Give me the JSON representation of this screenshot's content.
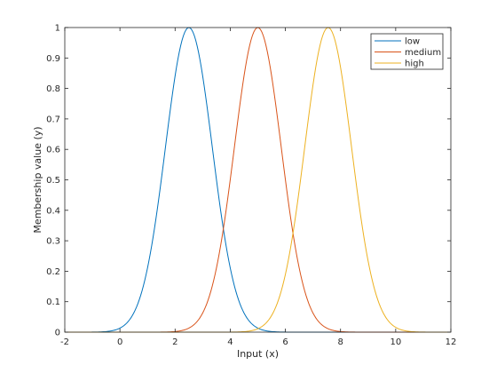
{
  "chart_data": {
    "type": "line",
    "title": "",
    "xlabel": "Input (x)",
    "ylabel": "Membership value (y)",
    "xlim": [
      -2,
      12
    ],
    "ylim": [
      0,
      1
    ],
    "xticks": [
      "-2",
      "0",
      "2",
      "4",
      "6",
      "8",
      "10",
      "12"
    ],
    "yticks": [
      "0",
      "0.1",
      "0.2",
      "0.3",
      "0.4",
      "0.5",
      "0.6",
      "0.7",
      "0.8",
      "0.9",
      "1"
    ],
    "grid": false,
    "legend_position": "top-right",
    "series": [
      {
        "name": "low",
        "color": "#0072BD",
        "curve": "gaussian",
        "mean": 2.5,
        "sigma": 0.85,
        "x": [
          -0.5,
          0,
          0.5,
          1,
          1.5,
          2,
          2.5,
          3,
          3.5,
          4,
          4.5,
          5,
          5.5
        ],
        "values": [
          0.002,
          0.013,
          0.063,
          0.211,
          0.501,
          0.841,
          1,
          0.841,
          0.501,
          0.211,
          0.063,
          0.013,
          0.002
        ]
      },
      {
        "name": "medium",
        "color": "#D95319",
        "curve": "gaussian",
        "mean": 5,
        "sigma": 0.85,
        "x": [
          2,
          2.5,
          3,
          3.5,
          4,
          4.5,
          5,
          5.5,
          6,
          6.5,
          7,
          7.5,
          8
        ],
        "values": [
          0.002,
          0.013,
          0.063,
          0.211,
          0.501,
          0.841,
          1,
          0.841,
          0.501,
          0.211,
          0.063,
          0.013,
          0.002
        ]
      },
      {
        "name": "high",
        "color": "#EDB120",
        "curve": "gaussian",
        "mean": 7.55,
        "sigma": 0.85,
        "x": [
          4.5,
          5,
          5.5,
          6,
          6.5,
          7,
          7.5,
          8,
          8.5,
          9,
          9.5,
          10,
          10.5
        ],
        "values": [
          0.002,
          0.011,
          0.055,
          0.19,
          0.47,
          0.815,
          0.998,
          0.869,
          0.535,
          0.232,
          0.071,
          0.016,
          0.002
        ]
      }
    ]
  }
}
